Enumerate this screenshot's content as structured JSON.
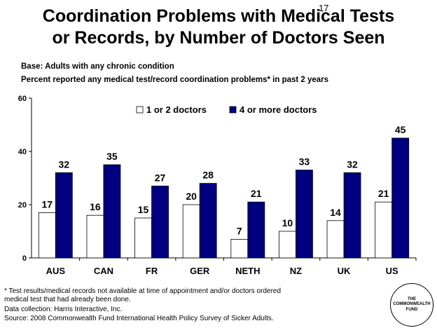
{
  "slide": {
    "title_line1": "Coordination Problems with Medical Tests",
    "title_line2": "or Records, by Number of Doctors Seen",
    "number": "17",
    "base": "Base: Adults with any chronic condition",
    "measure": "Percent reported any medical test/record coordination problems* in past 2 years",
    "footnote": "* Test results/medical records not available at time of appointment and/or doctors ordered medical test that had already been done.",
    "data_collection": "Data collection: Harris Interactive, Inc.",
    "source": "Source: 2008 Commonwealth Fund International Health Policy Survey of Sicker Adults.",
    "logo_text": "THE\nCOMMONWEALTH\nFUND"
  },
  "chart_data": {
    "type": "bar",
    "categories": [
      "AUS",
      "CAN",
      "FR",
      "GER",
      "NETH",
      "NZ",
      "UK",
      "US"
    ],
    "series": [
      {
        "name": "1 or 2 doctors",
        "values": [
          17,
          16,
          15,
          20,
          7,
          10,
          14,
          21
        ],
        "color": "#ffffff"
      },
      {
        "name": "4 or more doctors",
        "values": [
          32,
          35,
          27,
          28,
          21,
          33,
          32,
          45
        ],
        "color": "#000080"
      }
    ],
    "ylim": [
      0,
      60
    ],
    "yticks": [
      0,
      20,
      40,
      60
    ],
    "grid": false,
    "legend_position": "top"
  }
}
